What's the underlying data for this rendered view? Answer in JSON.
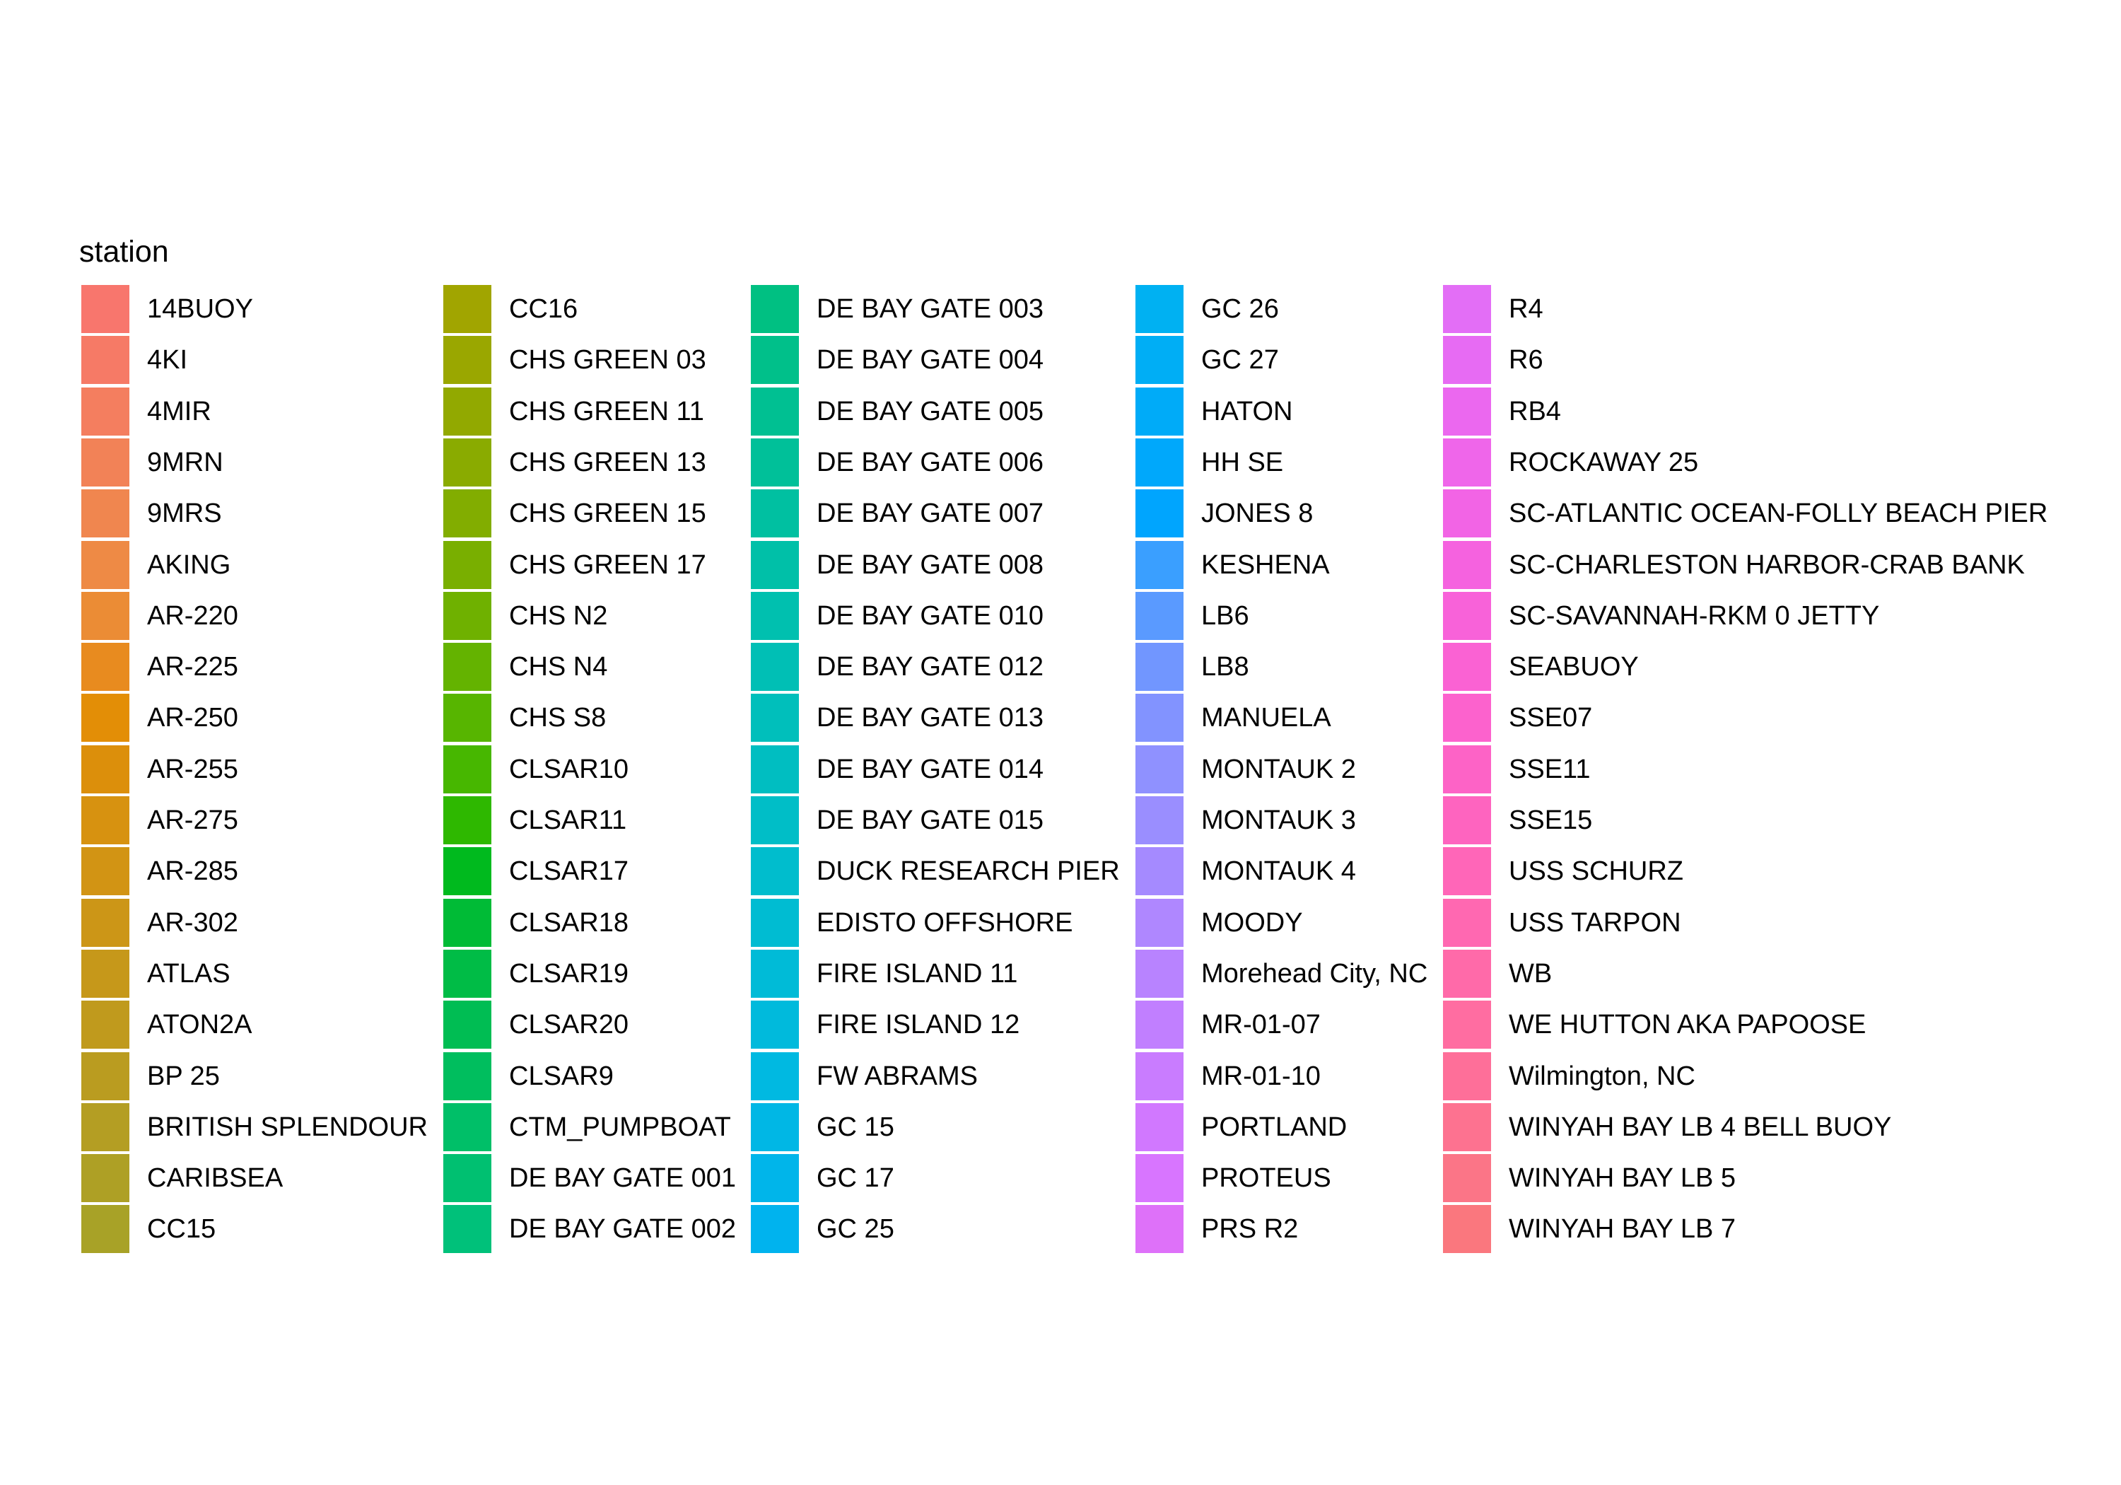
{
  "chart_data": {
    "type": "legend",
    "title": "station",
    "columns": 5,
    "rows_per_column": 19,
    "entries": [
      {
        "label": "14BUOY",
        "color": "#F8766D"
      },
      {
        "label": "4KI",
        "color": "#F67A66"
      },
      {
        "label": "4MIR",
        "color": "#F47E5F"
      },
      {
        "label": "9MRN",
        "color": "#F28257"
      },
      {
        "label": "9MRS",
        "color": "#F0864F"
      },
      {
        "label": "AKING",
        "color": "#EE8A45"
      },
      {
        "label": "AR-220",
        "color": "#EB8C35"
      },
      {
        "label": "AR-225",
        "color": "#E88B1F"
      },
      {
        "label": "AR-250",
        "color": "#E38E06"
      },
      {
        "label": "AR-255",
        "color": "#DC8F0B"
      },
      {
        "label": "AR-275",
        "color": "#D79210"
      },
      {
        "label": "AR-285",
        "color": "#D29414"
      },
      {
        "label": "AR-302",
        "color": "#CC9617"
      },
      {
        "label": "ATLAS",
        "color": "#C6981A"
      },
      {
        "label": "ATON2A",
        "color": "#C09A1D"
      },
      {
        "label": "BP 25",
        "color": "#BA9C20"
      },
      {
        "label": "BRITISH SPLENDOUR",
        "color": "#B49E23"
      },
      {
        "label": "CARIBSEA",
        "color": "#AEA025"
      },
      {
        "label": "CC15",
        "color": "#A8A227"
      },
      {
        "label": "CC16",
        "color": "#A1A500"
      },
      {
        "label": "CHS GREEN 03",
        "color": "#9AA700"
      },
      {
        "label": "CHS GREEN 11",
        "color": "#92A900"
      },
      {
        "label": "CHS GREEN 13",
        "color": "#8AAB00"
      },
      {
        "label": "CHS GREEN 15",
        "color": "#82AD00"
      },
      {
        "label": "CHS GREEN 17",
        "color": "#79AF00"
      },
      {
        "label": "CHS N2",
        "color": "#6FB100"
      },
      {
        "label": "CHS N4",
        "color": "#64B300"
      },
      {
        "label": "CHS S8",
        "color": "#57B500"
      },
      {
        "label": "CLSAR10",
        "color": "#47B700"
      },
      {
        "label": "CLSAR11",
        "color": "#2EB800"
      },
      {
        "label": "CLSAR17",
        "color": "#00BA1E"
      },
      {
        "label": "CLSAR18",
        "color": "#00BB36"
      },
      {
        "label": "CLSAR19",
        "color": "#00BC46"
      },
      {
        "label": "CLSAR20",
        "color": "#00BD53"
      },
      {
        "label": "CLSAR9",
        "color": "#00BE5E"
      },
      {
        "label": "CTM_PUMPBOAT",
        "color": "#00BF68"
      },
      {
        "label": "DE BAY GATE 001",
        "color": "#00C071"
      },
      {
        "label": "DE BAY GATE 002",
        "color": "#00C17A"
      },
      {
        "label": "DE BAY GATE 003",
        "color": "#00C082"
      },
      {
        "label": "DE BAY GATE 004",
        "color": "#00C08A"
      },
      {
        "label": "DE BAY GATE 005",
        "color": "#00C092"
      },
      {
        "label": "DE BAY GATE 006",
        "color": "#00C099"
      },
      {
        "label": "DE BAY GATE 007",
        "color": "#00C0A1"
      },
      {
        "label": "DE BAY GATE 008",
        "color": "#00C0A8"
      },
      {
        "label": "DE BAY GATE 010",
        "color": "#00C0AF"
      },
      {
        "label": "DE BAY GATE 012",
        "color": "#00BFB5"
      },
      {
        "label": "DE BAY GATE 013",
        "color": "#00BFBB"
      },
      {
        "label": "DE BAY GATE 014",
        "color": "#00BEC1"
      },
      {
        "label": "DE BAY GATE 015",
        "color": "#00BEC7"
      },
      {
        "label": "DUCK RESEARCH PIER",
        "color": "#00BDCD"
      },
      {
        "label": "EDISTO OFFSHORE",
        "color": "#00BCD2"
      },
      {
        "label": "FIRE ISLAND 11",
        "color": "#00BBD7"
      },
      {
        "label": "FIRE ISLAND 12",
        "color": "#00BADC"
      },
      {
        "label": "FW ABRAMS",
        "color": "#00B9E1"
      },
      {
        "label": "GC 15",
        "color": "#00B7E5"
      },
      {
        "label": "GC 17",
        "color": "#00B5EA"
      },
      {
        "label": "GC 25",
        "color": "#00B3EE"
      },
      {
        "label": "GC 26",
        "color": "#00B1F2"
      },
      {
        "label": "GC 27",
        "color": "#00AEF5"
      },
      {
        "label": "HATON",
        "color": "#00ABF8"
      },
      {
        "label": "HH SE",
        "color": "#00A8FB"
      },
      {
        "label": "JONES 8",
        "color": "#00A5FE"
      },
      {
        "label": "KESHENA",
        "color": "#3A9FFF"
      },
      {
        "label": "LB6",
        "color": "#5A9AFF"
      },
      {
        "label": "LB8",
        "color": "#7196FF"
      },
      {
        "label": "MANUELA",
        "color": "#8293FF"
      },
      {
        "label": "MONTAUK 2",
        "color": "#8F91FF"
      },
      {
        "label": "MONTAUK 3",
        "color": "#9A8EFF"
      },
      {
        "label": "MONTAUK 4",
        "color": "#A58AFF"
      },
      {
        "label": "MOODY",
        "color": "#AF87FF"
      },
      {
        "label": "Morehead City, NC",
        "color": "#B883FF"
      },
      {
        "label": "MR-01-07",
        "color": "#C17FFF"
      },
      {
        "label": "MR-01-10",
        "color": "#C97CFF"
      },
      {
        "label": "PORTLAND",
        "color": "#D178FF"
      },
      {
        "label": "PROTEUS",
        "color": "#D875FF"
      },
      {
        "label": "PRS R2",
        "color": "#DE71F9"
      },
      {
        "label": "R4",
        "color": "#E36EF6"
      },
      {
        "label": "R6",
        "color": "#E76BF3"
      },
      {
        "label": "RB4",
        "color": "#EB68EF"
      },
      {
        "label": "ROCKAWAY 25",
        "color": "#EF66EA"
      },
      {
        "label": "SC-ATLANTIC OCEAN-FOLLY BEACH PIER",
        "color": "#F264E5"
      },
      {
        "label": "SC-CHARLESTON HARBOR-CRAB BANK",
        "color": "#F562DF"
      },
      {
        "label": "SC-SAVANNAH-RKM 0 JETTY",
        "color": "#F862D9"
      },
      {
        "label": "SEABUOY",
        "color": "#FA62D3"
      },
      {
        "label": "SSE07",
        "color": "#FC62CD"
      },
      {
        "label": "SSE11",
        "color": "#FD63C6"
      },
      {
        "label": "SSE15",
        "color": "#FE64BF"
      },
      {
        "label": "USS SCHURZ",
        "color": "#FF66B8"
      },
      {
        "label": "USS TARPON",
        "color": "#FF68B1"
      },
      {
        "label": "WB",
        "color": "#FF6AA9"
      },
      {
        "label": "WE HUTTON AKA PAPOOSE",
        "color": "#FF6DA1"
      },
      {
        "label": "Wilmington, NC",
        "color": "#FE6F99"
      },
      {
        "label": "WINYAH BAY LB 4 BELL BUOY",
        "color": "#FD7290"
      },
      {
        "label": "WINYAH BAY LB 5",
        "color": "#FB7587"
      },
      {
        "label": "WINYAH BAY LB 7",
        "color": "#FA777E"
      }
    ]
  }
}
